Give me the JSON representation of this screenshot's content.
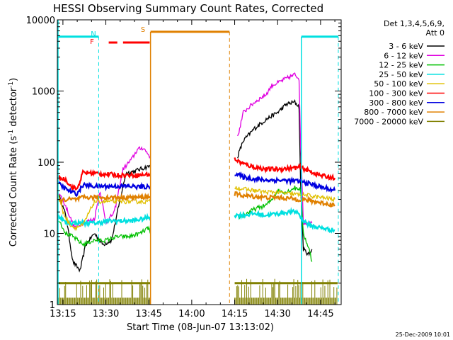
{
  "chart_data": {
    "type": "line",
    "title": "HESSI Observing Summary Count Rates, Corrected",
    "xlabel": "Start Time (08-Jun-07 13:13:02)",
    "ylabel_main": "Corrected Count Rate (s",
    "ylabel_sup1": "-1",
    "ylabel_mid": " detector",
    "ylabel_sup2": "-1",
    "ylabel_end": ")",
    "x_unit": "minutes since 13:00 UT",
    "xlim": [
      13.05,
      112.2
    ],
    "ylim": [
      1,
      10000
    ],
    "yscale": "log",
    "x_ticks": [
      {
        "v": 15,
        "label": "13:15"
      },
      {
        "v": 30,
        "label": "13:30"
      },
      {
        "v": 45,
        "label": "13:45"
      },
      {
        "v": 60,
        "label": "14:00"
      },
      {
        "v": 75,
        "label": "14:15"
      },
      {
        "v": 90,
        "label": "14:30"
      },
      {
        "v": 105,
        "label": "14:45"
      }
    ],
    "y_ticks": [
      {
        "v": 1,
        "label": "1"
      },
      {
        "v": 10,
        "label": "10"
      },
      {
        "v": 100,
        "label": "100"
      },
      {
        "v": 1000,
        "label": "1000"
      },
      {
        "v": 10000,
        "label": "10000"
      }
    ],
    "legend": {
      "placement": "right",
      "header1": "Det 1,3,4,5,6,9,",
      "header2": "Att 0"
    },
    "series": [
      {
        "name": "3 - 6 keV",
        "color": "#000000",
        "points": [
          [
            13.5,
            35
          ],
          [
            16,
            18
          ],
          [
            18.5,
            4
          ],
          [
            21,
            3
          ],
          [
            23,
            7
          ],
          [
            26,
            10
          ],
          [
            29,
            7
          ],
          [
            32,
            8
          ],
          [
            35,
            30
          ],
          [
            37,
            70
          ],
          [
            40,
            75
          ],
          [
            42,
            80
          ],
          [
            44,
            85
          ],
          [
            45.5,
            88
          ],
          [
            76,
            120
          ],
          [
            78,
            200
          ],
          [
            82,
            300
          ],
          [
            86,
            400
          ],
          [
            90,
            500
          ],
          [
            93,
            650
          ],
          [
            96,
            700
          ],
          [
            97.5,
            600
          ],
          [
            98,
            50
          ],
          [
            99,
            6
          ],
          [
            101,
            5
          ],
          [
            102,
            6
          ]
        ]
      },
      {
        "name": "6 - 12 keV",
        "color": "#e000e0",
        "points": [
          [
            13.5,
            38
          ],
          [
            16,
            24
          ],
          [
            19,
            12
          ],
          [
            22,
            14
          ],
          [
            26,
            16
          ],
          [
            28,
            40
          ],
          [
            30,
            14
          ],
          [
            33,
            20
          ],
          [
            36,
            80
          ],
          [
            39,
            110
          ],
          [
            41,
            150
          ],
          [
            43,
            160
          ],
          [
            45.5,
            120
          ],
          [
            76,
            220
          ],
          [
            78,
            500
          ],
          [
            82,
            700
          ],
          [
            86,
            900
          ],
          [
            88,
            1200
          ],
          [
            90,
            1300
          ],
          [
            93,
            1500
          ],
          [
            96,
            1700
          ],
          [
            97.5,
            1500
          ],
          [
            98,
            200
          ],
          [
            99,
            14
          ],
          [
            101,
            14
          ],
          [
            102,
            14
          ]
        ]
      },
      {
        "name": "12 - 25 keV",
        "color": "#00c000",
        "points": [
          [
            13.5,
            16
          ],
          [
            16,
            10
          ],
          [
            18.5,
            9
          ],
          [
            22,
            7
          ],
          [
            26,
            8
          ],
          [
            30,
            8
          ],
          [
            34,
            9
          ],
          [
            38,
            9
          ],
          [
            42,
            10
          ],
          [
            45,
            12
          ],
          [
            45.5,
            10
          ],
          [
            75,
            17
          ],
          [
            78,
            18
          ],
          [
            82,
            22
          ],
          [
            86,
            25
          ],
          [
            88,
            30
          ],
          [
            90,
            40
          ],
          [
            93,
            38
          ],
          [
            96,
            44
          ],
          [
            98,
            42
          ],
          [
            99,
            10
          ],
          [
            101,
            6
          ],
          [
            102,
            4
          ]
        ]
      },
      {
        "name": "25 - 50 keV",
        "color": "#00e0e0",
        "points": [
          [
            13.5,
            18
          ],
          [
            16,
            14
          ],
          [
            19,
            14
          ],
          [
            23,
            14
          ],
          [
            27,
            14
          ],
          [
            31,
            15
          ],
          [
            35,
            15
          ],
          [
            39,
            15
          ],
          [
            43,
            16
          ],
          [
            45,
            17
          ],
          [
            45.5,
            17
          ],
          [
            75,
            18
          ],
          [
            78,
            18
          ],
          [
            82,
            19
          ],
          [
            86,
            18
          ],
          [
            90,
            19
          ],
          [
            94,
            20
          ],
          [
            97,
            20
          ],
          [
            98.5,
            16
          ],
          [
            101,
            13
          ],
          [
            105,
            12
          ],
          [
            110,
            11
          ]
        ]
      },
      {
        "name": "50 - 100 keV",
        "color": "#e0c000",
        "points": [
          [
            13.5,
            35
          ],
          [
            15,
            20
          ],
          [
            17,
            14
          ],
          [
            19,
            12
          ],
          [
            22,
            13
          ],
          [
            26,
            28
          ],
          [
            30,
            28
          ],
          [
            34,
            28
          ],
          [
            38,
            28
          ],
          [
            42,
            28
          ],
          [
            45.5,
            28
          ],
          [
            75,
            45
          ],
          [
            78,
            42
          ],
          [
            82,
            40
          ],
          [
            86,
            38
          ],
          [
            90,
            38
          ],
          [
            94,
            36
          ],
          [
            98,
            35
          ],
          [
            101,
            34
          ],
          [
            105,
            32
          ],
          [
            110,
            30
          ]
        ]
      },
      {
        "name": "100 - 300 keV",
        "color": "#ff0000",
        "points": [
          [
            13.5,
            60
          ],
          [
            16,
            57
          ],
          [
            18,
            45
          ],
          [
            20,
            42
          ],
          [
            22,
            72
          ],
          [
            26,
            70
          ],
          [
            30,
            68
          ],
          [
            34,
            66
          ],
          [
            38,
            66
          ],
          [
            42,
            66
          ],
          [
            45.5,
            68
          ],
          [
            75,
            110
          ],
          [
            78,
            95
          ],
          [
            82,
            85
          ],
          [
            86,
            80
          ],
          [
            90,
            80
          ],
          [
            94,
            82
          ],
          [
            98,
            85
          ],
          [
            101,
            75
          ],
          [
            105,
            65
          ],
          [
            110,
            60
          ]
        ]
      },
      {
        "name": "300 - 800 keV",
        "color": "#0000e0",
        "points": [
          [
            13.5,
            50
          ],
          [
            16,
            42
          ],
          [
            18,
            38
          ],
          [
            20,
            36
          ],
          [
            22,
            48
          ],
          [
            26,
            46
          ],
          [
            30,
            46
          ],
          [
            34,
            46
          ],
          [
            38,
            46
          ],
          [
            42,
            45
          ],
          [
            45.5,
            45
          ],
          [
            75,
            70
          ],
          [
            78,
            62
          ],
          [
            82,
            58
          ],
          [
            86,
            56
          ],
          [
            90,
            56
          ],
          [
            94,
            55
          ],
          [
            98,
            54
          ],
          [
            101,
            50
          ],
          [
            105,
            45
          ],
          [
            110,
            40
          ]
        ]
      },
      {
        "name": "800 - 7000 keV",
        "color": "#e08000",
        "points": [
          [
            13.5,
            28
          ],
          [
            16,
            30
          ],
          [
            18,
            30
          ],
          [
            20,
            30
          ],
          [
            22,
            32
          ],
          [
            26,
            32
          ],
          [
            30,
            32
          ],
          [
            34,
            32
          ],
          [
            38,
            32
          ],
          [
            42,
            32
          ],
          [
            45.5,
            33
          ],
          [
            75,
            36
          ],
          [
            78,
            34
          ],
          [
            82,
            33
          ],
          [
            86,
            32
          ],
          [
            90,
            32
          ],
          [
            94,
            31
          ],
          [
            98,
            30
          ],
          [
            101,
            29
          ],
          [
            105,
            27
          ],
          [
            110,
            25
          ]
        ]
      },
      {
        "name": "7000 - 20000 keV",
        "color": "#808000",
        "points": [
          [
            13.5,
            2
          ],
          [
            46,
            2
          ],
          [
            75,
            2
          ],
          [
            111,
            2
          ]
        ]
      }
    ],
    "annotations": {
      "n_label": "N",
      "f_label": "F",
      "s_label": "S",
      "timestamp": "25-Dec-2009 10:01"
    }
  }
}
